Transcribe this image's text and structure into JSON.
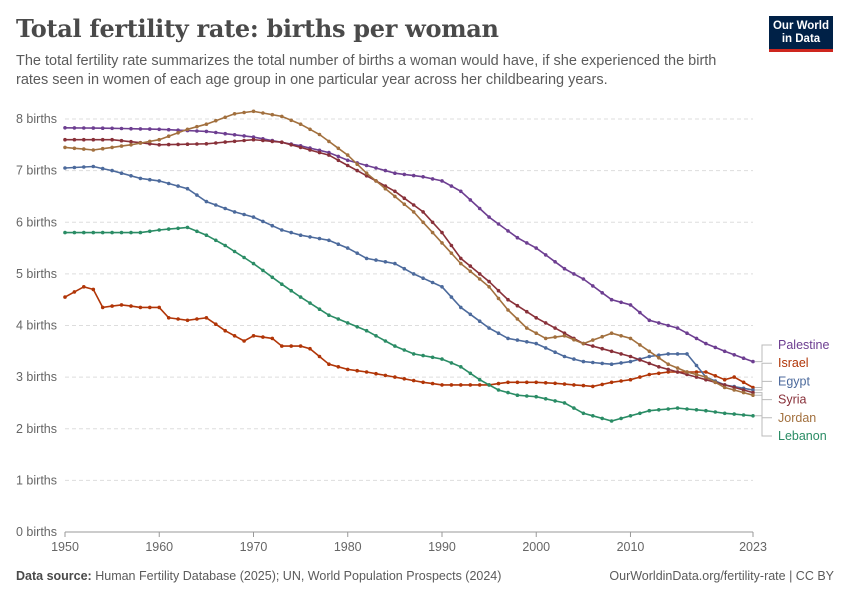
{
  "header": {
    "title": "Total fertility rate: births per woman",
    "subtitle": "The total fertility rate summarizes the total number of births a woman would have, if she experienced the birth rates seen in women of each age group in one particular year across her childbearing years."
  },
  "logo": {
    "line1": "Our World",
    "line2": "in Data"
  },
  "footer": {
    "source_label": "Data source:",
    "source_text": "Human Fertility Database (2025); UN, World Population Prospects (2024)",
    "url": "OurWorldinData.org/fertility-rate | CC BY"
  },
  "chart_data": {
    "type": "line",
    "xlim": [
      1950,
      2023
    ],
    "ylim": [
      0,
      8
    ],
    "x_ticks": [
      1950,
      1960,
      1970,
      1980,
      1990,
      2000,
      2010,
      2023
    ],
    "y_ticks": [
      0,
      1,
      2,
      3,
      4,
      5,
      6,
      7,
      8
    ],
    "y_tick_labels": [
      "0 births",
      "1 births",
      "2 births",
      "3 births",
      "4 births",
      "5 births",
      "6 births",
      "7 births",
      "8 births"
    ],
    "grid": "horizontal dashed",
    "legend_placement": "right, labels at line ends",
    "series": [
      {
        "name": "Palestine",
        "color": "#6d3e91",
        "points": [
          [
            1950,
            7.83
          ],
          [
            1955,
            7.82
          ],
          [
            1960,
            7.8
          ],
          [
            1965,
            7.76
          ],
          [
            1970,
            7.65
          ],
          [
            1975,
            7.48
          ],
          [
            1978,
            7.35
          ],
          [
            1980,
            7.2
          ],
          [
            1985,
            6.95
          ],
          [
            1988,
            6.88
          ],
          [
            1990,
            6.8
          ],
          [
            1992,
            6.6
          ],
          [
            1995,
            6.1
          ],
          [
            1998,
            5.7
          ],
          [
            2000,
            5.5
          ],
          [
            2003,
            5.1
          ],
          [
            2005,
            4.9
          ],
          [
            2008,
            4.5
          ],
          [
            2010,
            4.4
          ],
          [
            2012,
            4.1
          ],
          [
            2015,
            3.95
          ],
          [
            2018,
            3.65
          ],
          [
            2020,
            3.5
          ],
          [
            2023,
            3.3
          ]
        ]
      },
      {
        "name": "Israel",
        "color": "#b13507",
        "points": [
          [
            1950,
            4.55
          ],
          [
            1952,
            4.75
          ],
          [
            1953,
            4.7
          ],
          [
            1954,
            4.35
          ],
          [
            1956,
            4.4
          ],
          [
            1958,
            4.35
          ],
          [
            1960,
            4.35
          ],
          [
            1961,
            4.15
          ],
          [
            1963,
            4.1
          ],
          [
            1965,
            4.15
          ],
          [
            1967,
            3.9
          ],
          [
            1969,
            3.7
          ],
          [
            1970,
            3.8
          ],
          [
            1972,
            3.75
          ],
          [
            1973,
            3.6
          ],
          [
            1975,
            3.6
          ],
          [
            1976,
            3.55
          ],
          [
            1978,
            3.25
          ],
          [
            1980,
            3.15
          ],
          [
            1982,
            3.1
          ],
          [
            1985,
            3.0
          ],
          [
            1988,
            2.9
          ],
          [
            1990,
            2.85
          ],
          [
            1993,
            2.85
          ],
          [
            1995,
            2.85
          ],
          [
            1997,
            2.9
          ],
          [
            2000,
            2.9
          ],
          [
            2002,
            2.88
          ],
          [
            2004,
            2.85
          ],
          [
            2006,
            2.82
          ],
          [
            2008,
            2.9
          ],
          [
            2010,
            2.95
          ],
          [
            2012,
            3.05
          ],
          [
            2014,
            3.1
          ],
          [
            2016,
            3.1
          ],
          [
            2018,
            3.1
          ],
          [
            2020,
            2.95
          ],
          [
            2021,
            3.0
          ],
          [
            2022,
            2.9
          ],
          [
            2023,
            2.8
          ]
        ]
      },
      {
        "name": "Egypt",
        "color": "#4c6a9c",
        "points": [
          [
            1950,
            7.05
          ],
          [
            1953,
            7.08
          ],
          [
            1955,
            7.0
          ],
          [
            1958,
            6.85
          ],
          [
            1960,
            6.8
          ],
          [
            1963,
            6.65
          ],
          [
            1965,
            6.4
          ],
          [
            1968,
            6.2
          ],
          [
            1970,
            6.1
          ],
          [
            1973,
            5.85
          ],
          [
            1975,
            5.75
          ],
          [
            1978,
            5.65
          ],
          [
            1980,
            5.5
          ],
          [
            1982,
            5.3
          ],
          [
            1985,
            5.2
          ],
          [
            1987,
            5.0
          ],
          [
            1990,
            4.75
          ],
          [
            1992,
            4.35
          ],
          [
            1995,
            3.95
          ],
          [
            1997,
            3.75
          ],
          [
            2000,
            3.65
          ],
          [
            2003,
            3.4
          ],
          [
            2005,
            3.3
          ],
          [
            2008,
            3.25
          ],
          [
            2010,
            3.3
          ],
          [
            2012,
            3.4
          ],
          [
            2014,
            3.45
          ],
          [
            2016,
            3.45
          ],
          [
            2018,
            3.0
          ],
          [
            2020,
            2.85
          ],
          [
            2023,
            2.75
          ]
        ]
      },
      {
        "name": "Syria",
        "color": "#883039",
        "points": [
          [
            1950,
            7.6
          ],
          [
            1955,
            7.6
          ],
          [
            1960,
            7.5
          ],
          [
            1965,
            7.52
          ],
          [
            1970,
            7.6
          ],
          [
            1973,
            7.55
          ],
          [
            1975,
            7.45
          ],
          [
            1978,
            7.3
          ],
          [
            1980,
            7.1
          ],
          [
            1983,
            6.8
          ],
          [
            1985,
            6.6
          ],
          [
            1988,
            6.2
          ],
          [
            1990,
            5.8
          ],
          [
            1992,
            5.3
          ],
          [
            1995,
            4.85
          ],
          [
            1997,
            4.5
          ],
          [
            2000,
            4.15
          ],
          [
            2002,
            3.95
          ],
          [
            2005,
            3.65
          ],
          [
            2008,
            3.5
          ],
          [
            2010,
            3.4
          ],
          [
            2013,
            3.2
          ],
          [
            2015,
            3.1
          ],
          [
            2018,
            2.95
          ],
          [
            2020,
            2.85
          ],
          [
            2023,
            2.7
          ]
        ]
      },
      {
        "name": "Jordan",
        "color": "#a2703e",
        "points": [
          [
            1950,
            7.45
          ],
          [
            1953,
            7.4
          ],
          [
            1955,
            7.45
          ],
          [
            1957,
            7.5
          ],
          [
            1960,
            7.6
          ],
          [
            1963,
            7.8
          ],
          [
            1965,
            7.9
          ],
          [
            1968,
            8.1
          ],
          [
            1970,
            8.15
          ],
          [
            1973,
            8.05
          ],
          [
            1975,
            7.9
          ],
          [
            1977,
            7.7
          ],
          [
            1980,
            7.3
          ],
          [
            1982,
            6.95
          ],
          [
            1985,
            6.5
          ],
          [
            1987,
            6.2
          ],
          [
            1990,
            5.6
          ],
          [
            1992,
            5.2
          ],
          [
            1995,
            4.75
          ],
          [
            1997,
            4.3
          ],
          [
            1999,
            3.95
          ],
          [
            2001,
            3.75
          ],
          [
            2003,
            3.8
          ],
          [
            2005,
            3.65
          ],
          [
            2008,
            3.85
          ],
          [
            2010,
            3.75
          ],
          [
            2012,
            3.5
          ],
          [
            2014,
            3.25
          ],
          [
            2016,
            3.1
          ],
          [
            2018,
            3.0
          ],
          [
            2020,
            2.8
          ],
          [
            2023,
            2.65
          ]
        ]
      },
      {
        "name": "Lebanon",
        "color": "#2a8c65",
        "points": [
          [
            1950,
            5.8
          ],
          [
            1955,
            5.8
          ],
          [
            1958,
            5.8
          ],
          [
            1960,
            5.85
          ],
          [
            1963,
            5.9
          ],
          [
            1965,
            5.75
          ],
          [
            1967,
            5.55
          ],
          [
            1970,
            5.2
          ],
          [
            1973,
            4.8
          ],
          [
            1975,
            4.55
          ],
          [
            1978,
            4.2
          ],
          [
            1980,
            4.05
          ],
          [
            1982,
            3.9
          ],
          [
            1985,
            3.6
          ],
          [
            1987,
            3.45
          ],
          [
            1990,
            3.35
          ],
          [
            1992,
            3.2
          ],
          [
            1994,
            2.95
          ],
          [
            1996,
            2.75
          ],
          [
            1998,
            2.65
          ],
          [
            2000,
            2.62
          ],
          [
            2003,
            2.5
          ],
          [
            2005,
            2.3
          ],
          [
            2008,
            2.15
          ],
          [
            2010,
            2.25
          ],
          [
            2012,
            2.35
          ],
          [
            2015,
            2.4
          ],
          [
            2018,
            2.35
          ],
          [
            2020,
            2.3
          ],
          [
            2023,
            2.25
          ]
        ]
      }
    ]
  }
}
